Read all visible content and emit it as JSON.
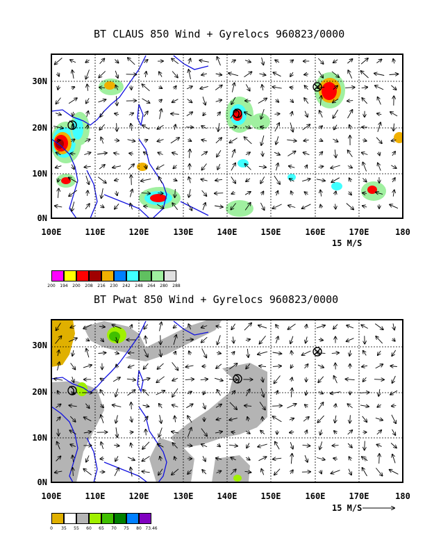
{
  "panel1": {
    "title": "BT CLAUS 850 Wind + Gyrelocs 960823/0000",
    "lat_labels": [
      "30N",
      "20N",
      "10N",
      "0N"
    ],
    "lon_labels": [
      "100E",
      "110E",
      "120E",
      "130E",
      "140E",
      "150E",
      "160E",
      "170E",
      "180"
    ],
    "scale_label": "15 M/S",
    "legend": {
      "colors": [
        "#ff00ff",
        "#ffff00",
        "#ff0000",
        "#a00000",
        "#f0b000",
        "#0080ff",
        "#40ffff",
        "#60c060",
        "#a0f0a0",
        "#e0e0e0"
      ],
      "ticks": [
        "200",
        "194",
        "200",
        "208",
        "216",
        "230",
        "242",
        "248",
        "264",
        "280",
        "288"
      ]
    }
  },
  "panel2": {
    "title": "BT Pwat 850 Wind + Gyrelocs 960823/0000",
    "lat_labels": [
      "30N",
      "20N",
      "10N",
      "0N"
    ],
    "lon_labels": [
      "100E",
      "110E",
      "120E",
      "130E",
      "140E",
      "150E",
      "160E",
      "170E",
      "180"
    ],
    "scale_label": "15 M/S",
    "legend": {
      "colors": [
        "#e0b000",
        "#ffffff",
        "#b4b4b4",
        "#a0f000",
        "#40c000",
        "#008000",
        "#0080ff",
        "#8000c0"
      ],
      "ticks": [
        "0",
        "35",
        "55",
        "60",
        "65",
        "70",
        "75",
        "80",
        "73.46"
      ]
    }
  }
}
